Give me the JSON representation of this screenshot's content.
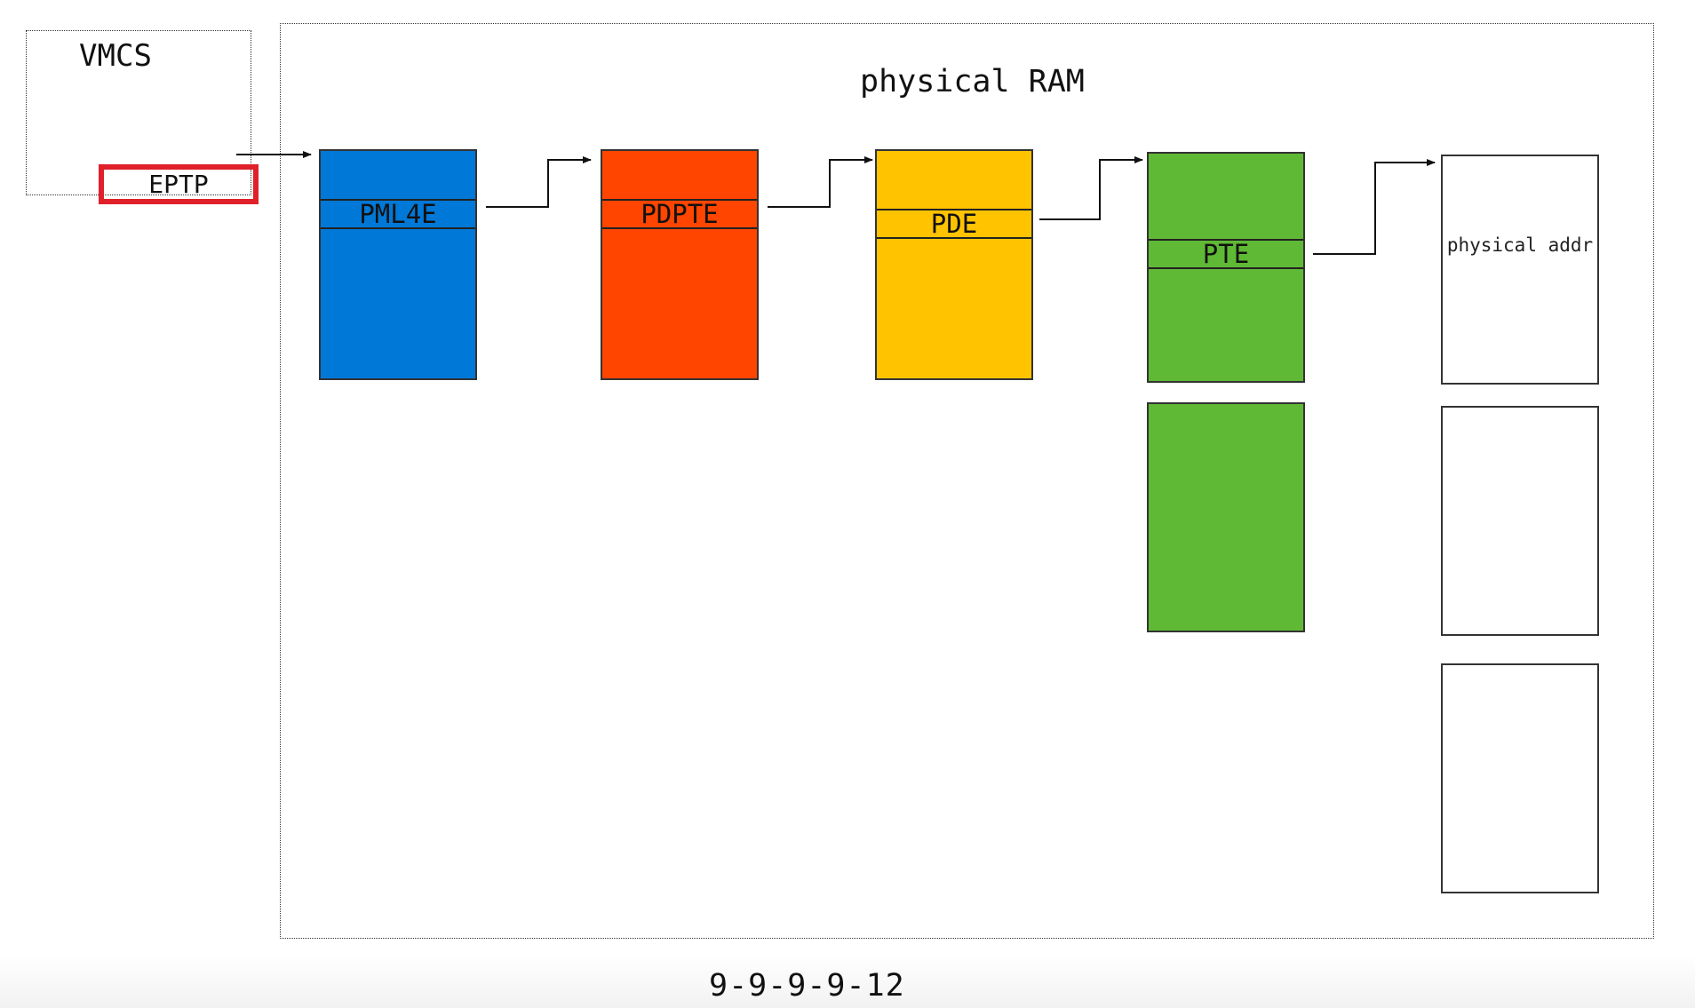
{
  "vmcs": {
    "title": "VMCS",
    "eptp_label": "EPTP"
  },
  "ram": {
    "title": "physical RAM"
  },
  "tables": [
    {
      "entry_label": "PML4E",
      "color": "#0078d7"
    },
    {
      "entry_label": "PDPTE",
      "color": "#ff4500"
    },
    {
      "entry_label": "PDE",
      "color": "#ffc300"
    },
    {
      "entry_label": "PTE",
      "color": "#5fb934"
    }
  ],
  "physical_pages": {
    "label": "physical addr"
  },
  "caption": "9-9-9-9-12"
}
